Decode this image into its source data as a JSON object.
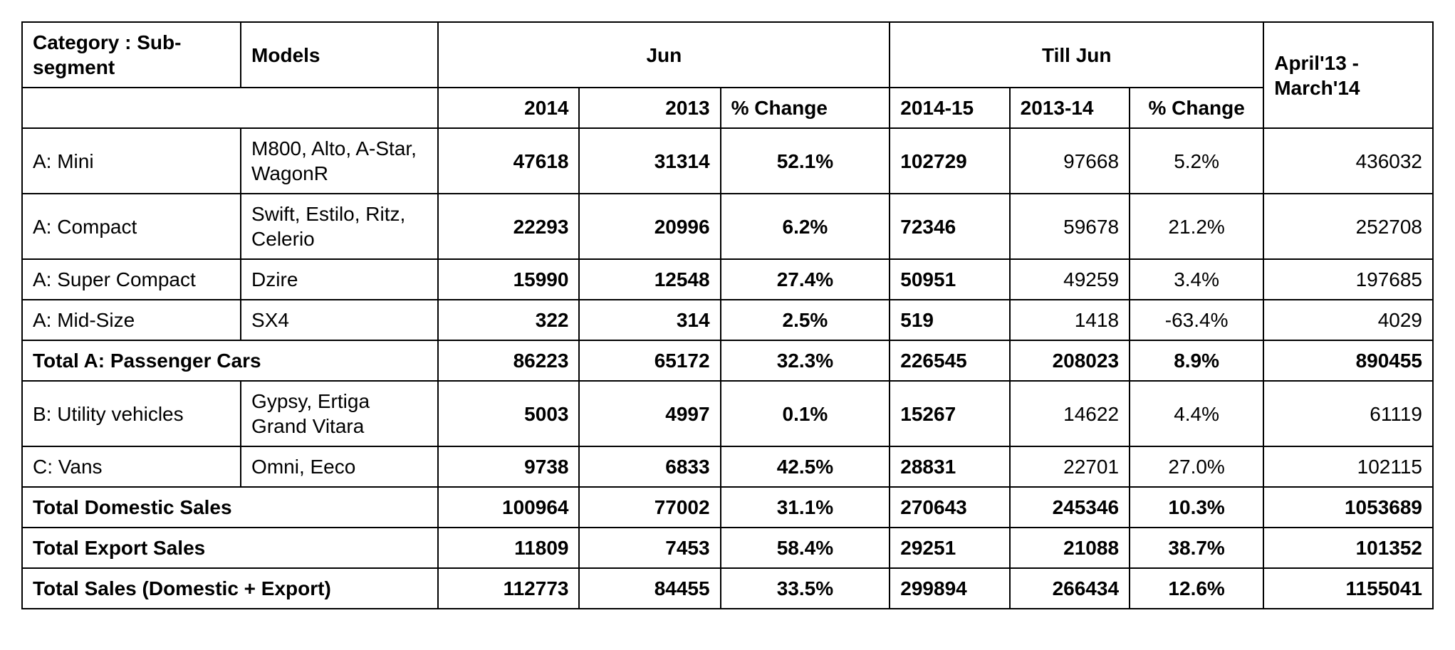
{
  "header": {
    "category": "Category : Sub-segment",
    "models": "Models",
    "jun": "Jun",
    "tillJun": "Till Jun",
    "fy": "April'13 - March'14",
    "sub": {
      "jun2014": "2014",
      "jun2013": "2013",
      "junPct": "% Change",
      "till1415": "2014-15",
      "till1314": "2013-14",
      "tillPct": "% Change"
    }
  },
  "rows": [
    {
      "cat": "A: Mini",
      "models": "M800, Alto, A-Star, WagonR",
      "v": [
        "47618",
        "31314",
        "52.1%",
        "102729",
        "97668",
        "5.2%",
        "436032"
      ]
    },
    {
      "cat": "A: Compact",
      "models": "Swift, Estilo, Ritz, Celerio",
      "v": [
        "22293",
        "20996",
        "6.2%",
        "72346",
        "59678",
        "21.2%",
        "252708"
      ]
    },
    {
      "cat": "A: Super Compact",
      "models": "Dzire",
      "v": [
        "15990",
        "12548",
        "27.4%",
        "50951",
        "49259",
        "3.4%",
        "197685"
      ]
    },
    {
      "cat": "A: Mid-Size",
      "models": "SX4",
      "v": [
        "322",
        "314",
        "2.5%",
        "519",
        "1418",
        "-63.4%",
        "4029"
      ]
    }
  ],
  "totalA": {
    "label": "Total A: Passenger Cars",
    "v": [
      "86223",
      "65172",
      "32.3%",
      "226545",
      "208023",
      "8.9%",
      "890455"
    ]
  },
  "rowsB": [
    {
      "cat": "B: Utility vehicles",
      "models": "Gypsy, Ertiga Grand Vitara",
      "v": [
        "5003",
        "4997",
        "0.1%",
        "15267",
        "14622",
        "4.4%",
        "61119"
      ]
    },
    {
      "cat": "C: Vans",
      "models": "Omni, Eeco",
      "v": [
        "9738",
        "6833",
        "42.5%",
        "28831",
        "22701",
        "27.0%",
        "102115"
      ]
    }
  ],
  "totals": [
    {
      "label": "Total Domestic Sales",
      "v": [
        "100964",
        "77002",
        "31.1%",
        "270643",
        "245346",
        "10.3%",
        "1053689"
      ]
    },
    {
      "label": "Total Export Sales",
      "v": [
        "11809",
        "7453",
        "58.4%",
        "29251",
        "21088",
        "38.7%",
        "101352"
      ]
    },
    {
      "label": "Total Sales (Domestic + Export)",
      "v": [
        "112773",
        "84455",
        "33.5%",
        "299894",
        "266434",
        "12.6%",
        "1155041"
      ]
    }
  ],
  "style": {
    "border_color": "#000000",
    "background": "#ffffff",
    "font_family": "Arial",
    "font_size_pt": 21,
    "bold_weight": 700
  }
}
